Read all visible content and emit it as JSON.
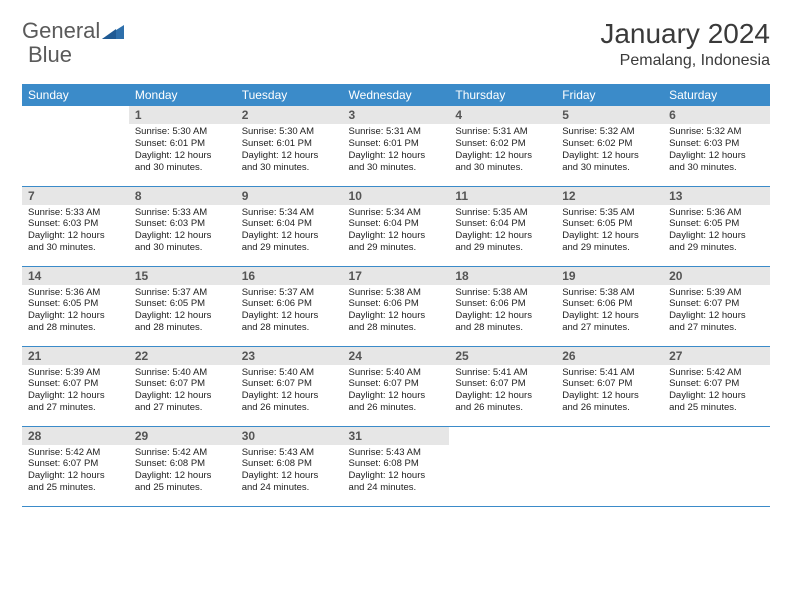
{
  "brand": {
    "word1": "General",
    "word2": "Blue"
  },
  "title": "January 2024",
  "location": "Pemalang, Indonesia",
  "colors": {
    "header_bg": "#3b8bc9",
    "header_text": "#ffffff",
    "daynum_bg": "#e6e6e6",
    "daynum_text": "#555555",
    "body_text": "#222222",
    "rule": "#3b8bc9",
    "logo_gray": "#5a5a5a",
    "logo_blue": "#2e6fab"
  },
  "weekdays": [
    "Sunday",
    "Monday",
    "Tuesday",
    "Wednesday",
    "Thursday",
    "Friday",
    "Saturday"
  ],
  "weeks": [
    [
      {
        "n": "",
        "sr": "",
        "ss": "",
        "dl": ""
      },
      {
        "n": "1",
        "sr": "Sunrise: 5:30 AM",
        "ss": "Sunset: 6:01 PM",
        "dl": "Daylight: 12 hours and 30 minutes."
      },
      {
        "n": "2",
        "sr": "Sunrise: 5:30 AM",
        "ss": "Sunset: 6:01 PM",
        "dl": "Daylight: 12 hours and 30 minutes."
      },
      {
        "n": "3",
        "sr": "Sunrise: 5:31 AM",
        "ss": "Sunset: 6:01 PM",
        "dl": "Daylight: 12 hours and 30 minutes."
      },
      {
        "n": "4",
        "sr": "Sunrise: 5:31 AM",
        "ss": "Sunset: 6:02 PM",
        "dl": "Daylight: 12 hours and 30 minutes."
      },
      {
        "n": "5",
        "sr": "Sunrise: 5:32 AM",
        "ss": "Sunset: 6:02 PM",
        "dl": "Daylight: 12 hours and 30 minutes."
      },
      {
        "n": "6",
        "sr": "Sunrise: 5:32 AM",
        "ss": "Sunset: 6:03 PM",
        "dl": "Daylight: 12 hours and 30 minutes."
      }
    ],
    [
      {
        "n": "7",
        "sr": "Sunrise: 5:33 AM",
        "ss": "Sunset: 6:03 PM",
        "dl": "Daylight: 12 hours and 30 minutes."
      },
      {
        "n": "8",
        "sr": "Sunrise: 5:33 AM",
        "ss": "Sunset: 6:03 PM",
        "dl": "Daylight: 12 hours and 30 minutes."
      },
      {
        "n": "9",
        "sr": "Sunrise: 5:34 AM",
        "ss": "Sunset: 6:04 PM",
        "dl": "Daylight: 12 hours and 29 minutes."
      },
      {
        "n": "10",
        "sr": "Sunrise: 5:34 AM",
        "ss": "Sunset: 6:04 PM",
        "dl": "Daylight: 12 hours and 29 minutes."
      },
      {
        "n": "11",
        "sr": "Sunrise: 5:35 AM",
        "ss": "Sunset: 6:04 PM",
        "dl": "Daylight: 12 hours and 29 minutes."
      },
      {
        "n": "12",
        "sr": "Sunrise: 5:35 AM",
        "ss": "Sunset: 6:05 PM",
        "dl": "Daylight: 12 hours and 29 minutes."
      },
      {
        "n": "13",
        "sr": "Sunrise: 5:36 AM",
        "ss": "Sunset: 6:05 PM",
        "dl": "Daylight: 12 hours and 29 minutes."
      }
    ],
    [
      {
        "n": "14",
        "sr": "Sunrise: 5:36 AM",
        "ss": "Sunset: 6:05 PM",
        "dl": "Daylight: 12 hours and 28 minutes."
      },
      {
        "n": "15",
        "sr": "Sunrise: 5:37 AM",
        "ss": "Sunset: 6:05 PM",
        "dl": "Daylight: 12 hours and 28 minutes."
      },
      {
        "n": "16",
        "sr": "Sunrise: 5:37 AM",
        "ss": "Sunset: 6:06 PM",
        "dl": "Daylight: 12 hours and 28 minutes."
      },
      {
        "n": "17",
        "sr": "Sunrise: 5:38 AM",
        "ss": "Sunset: 6:06 PM",
        "dl": "Daylight: 12 hours and 28 minutes."
      },
      {
        "n": "18",
        "sr": "Sunrise: 5:38 AM",
        "ss": "Sunset: 6:06 PM",
        "dl": "Daylight: 12 hours and 28 minutes."
      },
      {
        "n": "19",
        "sr": "Sunrise: 5:38 AM",
        "ss": "Sunset: 6:06 PM",
        "dl": "Daylight: 12 hours and 27 minutes."
      },
      {
        "n": "20",
        "sr": "Sunrise: 5:39 AM",
        "ss": "Sunset: 6:07 PM",
        "dl": "Daylight: 12 hours and 27 minutes."
      }
    ],
    [
      {
        "n": "21",
        "sr": "Sunrise: 5:39 AM",
        "ss": "Sunset: 6:07 PM",
        "dl": "Daylight: 12 hours and 27 minutes."
      },
      {
        "n": "22",
        "sr": "Sunrise: 5:40 AM",
        "ss": "Sunset: 6:07 PM",
        "dl": "Daylight: 12 hours and 27 minutes."
      },
      {
        "n": "23",
        "sr": "Sunrise: 5:40 AM",
        "ss": "Sunset: 6:07 PM",
        "dl": "Daylight: 12 hours and 26 minutes."
      },
      {
        "n": "24",
        "sr": "Sunrise: 5:40 AM",
        "ss": "Sunset: 6:07 PM",
        "dl": "Daylight: 12 hours and 26 minutes."
      },
      {
        "n": "25",
        "sr": "Sunrise: 5:41 AM",
        "ss": "Sunset: 6:07 PM",
        "dl": "Daylight: 12 hours and 26 minutes."
      },
      {
        "n": "26",
        "sr": "Sunrise: 5:41 AM",
        "ss": "Sunset: 6:07 PM",
        "dl": "Daylight: 12 hours and 26 minutes."
      },
      {
        "n": "27",
        "sr": "Sunrise: 5:42 AM",
        "ss": "Sunset: 6:07 PM",
        "dl": "Daylight: 12 hours and 25 minutes."
      }
    ],
    [
      {
        "n": "28",
        "sr": "Sunrise: 5:42 AM",
        "ss": "Sunset: 6:07 PM",
        "dl": "Daylight: 12 hours and 25 minutes."
      },
      {
        "n": "29",
        "sr": "Sunrise: 5:42 AM",
        "ss": "Sunset: 6:08 PM",
        "dl": "Daylight: 12 hours and 25 minutes."
      },
      {
        "n": "30",
        "sr": "Sunrise: 5:43 AM",
        "ss": "Sunset: 6:08 PM",
        "dl": "Daylight: 12 hours and 24 minutes."
      },
      {
        "n": "31",
        "sr": "Sunrise: 5:43 AM",
        "ss": "Sunset: 6:08 PM",
        "dl": "Daylight: 12 hours and 24 minutes."
      },
      {
        "n": "",
        "sr": "",
        "ss": "",
        "dl": ""
      },
      {
        "n": "",
        "sr": "",
        "ss": "",
        "dl": ""
      },
      {
        "n": "",
        "sr": "",
        "ss": "",
        "dl": ""
      }
    ]
  ]
}
